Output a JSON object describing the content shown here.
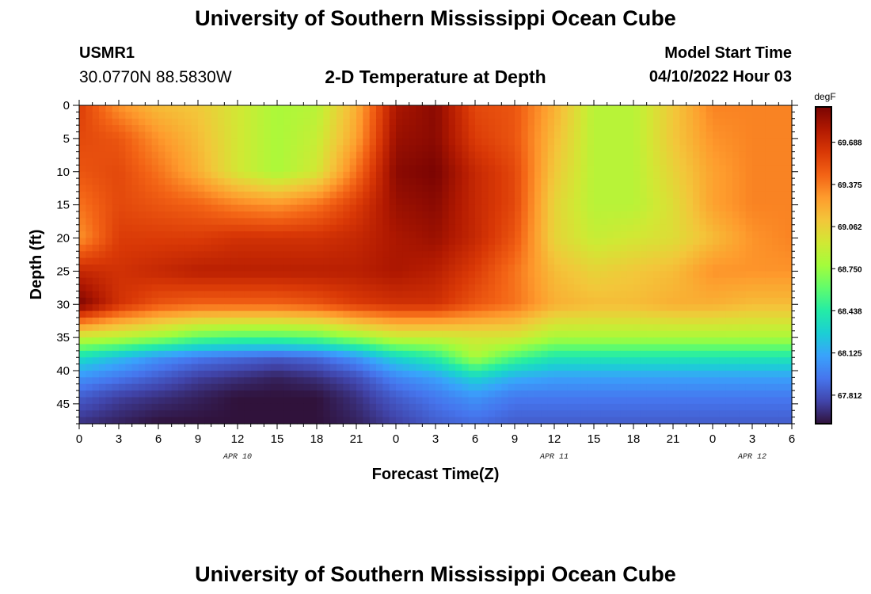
{
  "header": {
    "title": "University of Southern Mississippi Ocean Cube",
    "station_id": "USMR1",
    "coords": "30.0770N  88.5830W",
    "subtitle": "2-D Temperature at Depth",
    "start_label": "Model Start Time",
    "start_value": "04/10/2022 Hour 03"
  },
  "footer": {
    "title": "University of Southern Mississippi Ocean Cube"
  },
  "chart_data": {
    "type": "heatmap",
    "title": "2-D Temperature at Depth",
    "xlabel": "Forecast Time(Z)",
    "ylabel": "Depth (ft)",
    "colorbar_unit": "degF",
    "x_ticks": [
      {
        "h": 0,
        "label": "0"
      },
      {
        "h": 3,
        "label": "3"
      },
      {
        "h": 6,
        "label": "6"
      },
      {
        "h": 9,
        "label": "9"
      },
      {
        "h": 12,
        "label": "12"
      },
      {
        "h": 15,
        "label": "15"
      },
      {
        "h": 18,
        "label": "18"
      },
      {
        "h": 21,
        "label": "21"
      },
      {
        "h": 24,
        "label": "0"
      },
      {
        "h": 27,
        "label": "3"
      },
      {
        "h": 30,
        "label": "6"
      },
      {
        "h": 33,
        "label": "9"
      },
      {
        "h": 36,
        "label": "12"
      },
      {
        "h": 39,
        "label": "15"
      },
      {
        "h": 42,
        "label": "18"
      },
      {
        "h": 45,
        "label": "21"
      },
      {
        "h": 48,
        "label": "0"
      },
      {
        "h": 51,
        "label": "3"
      },
      {
        "h": 54,
        "label": "6"
      }
    ],
    "date_labels": [
      {
        "h": 12,
        "label": "APR 10"
      },
      {
        "h": 36,
        "label": "APR 11"
      },
      {
        "h": 51,
        "label": "APR 12"
      }
    ],
    "y_ticks": [
      0,
      5,
      10,
      15,
      20,
      25,
      30,
      35,
      40,
      45
    ],
    "xlim": [
      0,
      54
    ],
    "ylim": [
      0,
      48
    ],
    "color_ticks": [
      67.812,
      68.125,
      68.438,
      68.75,
      69.062,
      69.375,
      69.688
    ],
    "color_ticks_labels": [
      "67.812",
      "68.125",
      "68.438",
      "68.750",
      "69.062",
      "69.375",
      "69.688"
    ],
    "color_range": [
      67.6,
      69.95
    ],
    "colormap": [
      "#30123b",
      "#4145ab",
      "#4675ed",
      "#39a2fc",
      "#1bcfd4",
      "#24eca6",
      "#61fc6c",
      "#a4fc3b",
      "#d1e834",
      "#f3c63a",
      "#fe9b2d",
      "#f36315",
      "#d93806",
      "#b11901",
      "#7a0402"
    ],
    "grid_x_hours": [
      0,
      3,
      6,
      9,
      12,
      15,
      18,
      21,
      24,
      27,
      30,
      33,
      36,
      39,
      42,
      45,
      48,
      51,
      54
    ],
    "grid_depths_ft": [
      0,
      5,
      10,
      15,
      20,
      25,
      30,
      35,
      38,
      41,
      44,
      48
    ],
    "temperature_degF": [
      [
        69.6,
        69.3,
        69.15,
        69.1,
        68.95,
        68.8,
        68.85,
        69.2,
        69.8,
        69.9,
        69.55,
        69.5,
        69.2,
        68.85,
        68.85,
        69.1,
        69.35,
        69.35,
        69.35
      ],
      [
        69.55,
        69.5,
        69.3,
        69.15,
        68.95,
        68.8,
        68.9,
        69.25,
        69.85,
        69.9,
        69.6,
        69.5,
        69.15,
        68.85,
        68.85,
        69.1,
        69.3,
        69.35,
        69.35
      ],
      [
        69.5,
        69.55,
        69.4,
        69.2,
        68.95,
        68.8,
        68.95,
        69.4,
        69.9,
        69.95,
        69.7,
        69.55,
        69.1,
        68.85,
        68.85,
        69.05,
        69.25,
        69.35,
        69.35
      ],
      [
        69.4,
        69.55,
        69.5,
        69.45,
        69.35,
        69.3,
        69.4,
        69.6,
        69.85,
        69.9,
        69.7,
        69.55,
        69.05,
        68.85,
        68.85,
        69.0,
        69.25,
        69.35,
        69.35
      ],
      [
        69.3,
        69.6,
        69.6,
        69.6,
        69.65,
        69.65,
        69.65,
        69.7,
        69.8,
        69.85,
        69.7,
        69.5,
        69.05,
        68.9,
        68.95,
        69.0,
        69.15,
        69.3,
        69.35
      ],
      [
        69.7,
        69.65,
        69.7,
        69.75,
        69.75,
        69.75,
        69.75,
        69.75,
        69.8,
        69.75,
        69.6,
        69.4,
        69.15,
        69.05,
        69.1,
        69.15,
        69.3,
        69.3,
        69.3
      ],
      [
        69.95,
        69.65,
        69.5,
        69.45,
        69.45,
        69.45,
        69.5,
        69.6,
        69.65,
        69.65,
        69.5,
        69.4,
        69.2,
        69.15,
        69.15,
        69.2,
        69.2,
        69.15,
        69.15
      ],
      [
        68.9,
        68.85,
        68.75,
        68.6,
        68.55,
        68.55,
        68.6,
        68.75,
        68.9,
        68.9,
        68.95,
        68.95,
        68.8,
        68.8,
        68.8,
        68.8,
        68.8,
        68.8,
        68.8
      ],
      [
        68.35,
        68.2,
        68.05,
        67.95,
        67.9,
        67.85,
        67.9,
        68.05,
        68.3,
        68.45,
        68.8,
        68.55,
        68.4,
        68.4,
        68.4,
        68.4,
        68.4,
        68.4,
        68.4
      ],
      [
        68.05,
        67.95,
        67.85,
        67.75,
        67.7,
        67.65,
        67.7,
        67.8,
        68.0,
        68.1,
        68.3,
        68.15,
        68.1,
        68.1,
        68.1,
        68.1,
        68.1,
        68.1,
        68.1
      ],
      [
        67.85,
        67.75,
        67.7,
        67.65,
        67.6,
        67.6,
        67.6,
        67.7,
        67.85,
        67.95,
        68.05,
        67.95,
        67.95,
        67.95,
        67.95,
        67.95,
        67.95,
        67.95,
        67.95
      ],
      [
        67.7,
        67.65,
        67.6,
        67.6,
        67.6,
        67.6,
        67.6,
        67.65,
        67.75,
        67.85,
        67.9,
        67.85,
        67.85,
        67.85,
        67.85,
        67.85,
        67.85,
        67.85,
        67.85
      ]
    ]
  }
}
